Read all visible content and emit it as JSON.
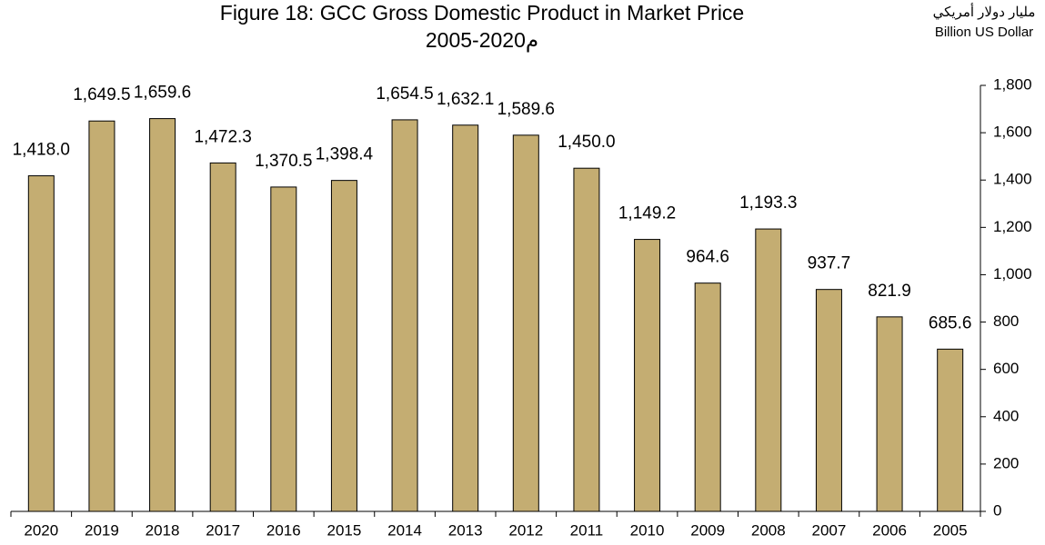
{
  "chart_data": {
    "type": "bar",
    "title": "Figure 18: GCC Gross Domestic Product in Market Price",
    "subtitle": "2005-2020م",
    "y_label_ar": "مليار دولار أمريكي",
    "y_label": "Billion US Dollar",
    "categories": [
      "2020",
      "2019",
      "2018",
      "2017",
      "2016",
      "2015",
      "2014",
      "2013",
      "2012",
      "2011",
      "2010",
      "2009",
      "2008",
      "2007",
      "2006",
      "2005"
    ],
    "values": [
      1418.0,
      1649.5,
      1659.6,
      1472.3,
      1370.5,
      1398.4,
      1654.5,
      1632.1,
      1589.6,
      1450.0,
      1149.2,
      964.6,
      1193.3,
      937.7,
      821.9,
      685.6
    ],
    "value_labels": [
      "1,418.0",
      "1,649.5",
      "1,659.6",
      "1,472.3",
      "1,370.5",
      "1,398.4",
      "1,654.5",
      "1,632.1",
      "1,589.6",
      "1,450.0",
      "1,149.2",
      "964.6",
      "1,193.3",
      "937.7",
      "821.9",
      "685.6"
    ],
    "color": "#c4ad72",
    "ylim": [
      0,
      1800
    ],
    "yticks": [
      0,
      200,
      400,
      600,
      800,
      {
        "value": 1000,
        "label": "1,000"
      },
      {
        "value": 1200,
        "label": "1,200"
      },
      {
        "value": 1400,
        "label": "1,400"
      },
      {
        "value": 1600,
        "label": "1,600"
      },
      {
        "value": 1800,
        "label": "1,800"
      }
    ],
    "y_axis_side": "right",
    "grid": false
  }
}
